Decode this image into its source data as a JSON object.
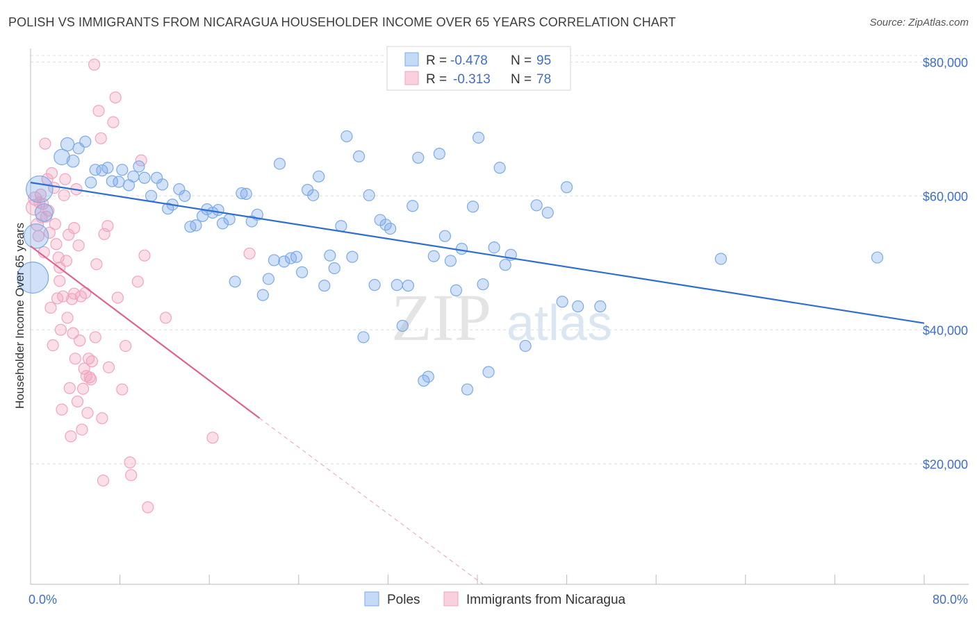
{
  "title": "POLISH VS IMMIGRANTS FROM NICARAGUA HOUSEHOLDER INCOME OVER 65 YEARS CORRELATION CHART",
  "source": "Source: ZipAtlas.com",
  "chart_data": {
    "type": "scatter",
    "title": "POLISH VS IMMIGRANTS FROM NICARAGUA HOUSEHOLDER INCOME OVER 65 YEARS CORRELATION CHART",
    "xlabel": "",
    "ylabel": "Householder Income Over 65 years",
    "xlim": [
      0,
      80
    ],
    "ylim": [
      2000,
      82000
    ],
    "x_tick_labels": [
      {
        "value": 0,
        "label": "0.0%"
      },
      {
        "value": 80,
        "label": "80.0%"
      }
    ],
    "y_tick_labels": [
      {
        "value": 20000,
        "label": "$20,000"
      },
      {
        "value": 40000,
        "label": "$40,000"
      },
      {
        "value": 60000,
        "label": "$60,000"
      },
      {
        "value": 80000,
        "label": "$80,000"
      }
    ],
    "watermark": {
      "zip": "ZIP",
      "atlas": "atlas"
    },
    "legend": [
      {
        "r_label": "R =",
        "r_value": "-0.478",
        "n_label": "N =",
        "n_value": "95"
      },
      {
        "r_label": "R =",
        "r_value": "-0.313",
        "n_label": "N =",
        "n_value": "78"
      }
    ],
    "series": [
      {
        "name": "Poles",
        "color": "#7aaae8",
        "line_color": "#2d6fd0",
        "trend": {
          "x0": 0,
          "y0": 62000,
          "x1": 80,
          "y1": 41000
        },
        "points": [
          [
            0.2,
            47800,
            28
          ],
          [
            0.5,
            54000,
            22
          ],
          [
            0.8,
            61000,
            24
          ],
          [
            1.2,
            57500,
            16
          ],
          [
            2.8,
            65800,
            14
          ],
          [
            3.3,
            67700,
            12
          ],
          [
            3.8,
            65200,
            11
          ],
          [
            4.3,
            67100,
            10
          ],
          [
            4.9,
            68100,
            10
          ],
          [
            5.4,
            62000,
            10
          ],
          [
            5.8,
            63900,
            10
          ],
          [
            6.4,
            63800,
            10
          ],
          [
            6.9,
            64200,
            10
          ],
          [
            7.3,
            62200,
            10
          ],
          [
            7.9,
            62100,
            10
          ],
          [
            8.2,
            63900,
            10
          ],
          [
            8.8,
            61600,
            10
          ],
          [
            9.2,
            62900,
            10
          ],
          [
            9.7,
            64400,
            10
          ],
          [
            10.2,
            62700,
            10
          ],
          [
            10.8,
            60000,
            10
          ],
          [
            11.3,
            62700,
            10
          ],
          [
            11.8,
            61700,
            10
          ],
          [
            12.3,
            58100,
            10
          ],
          [
            12.7,
            58700,
            10
          ],
          [
            13.3,
            61000,
            10
          ],
          [
            13.8,
            60000,
            10
          ],
          [
            14.3,
            55400,
            10
          ],
          [
            14.8,
            55600,
            10
          ],
          [
            15.4,
            57000,
            10
          ],
          [
            15.8,
            58000,
            10
          ],
          [
            16.3,
            57500,
            10
          ],
          [
            16.8,
            57900,
            10
          ],
          [
            17.2,
            55900,
            10
          ],
          [
            17.8,
            56500,
            10
          ],
          [
            18.3,
            47200,
            10
          ],
          [
            18.9,
            60400,
            10
          ],
          [
            19.3,
            60300,
            10
          ],
          [
            19.8,
            56200,
            10
          ],
          [
            20.3,
            57200,
            10
          ],
          [
            20.8,
            45200,
            10
          ],
          [
            21.3,
            47600,
            10
          ],
          [
            21.8,
            50400,
            10
          ],
          [
            22.3,
            64800,
            10
          ],
          [
            22.7,
            50200,
            10
          ],
          [
            23.3,
            50700,
            10
          ],
          [
            23.8,
            50900,
            10
          ],
          [
            24.3,
            48600,
            10
          ],
          [
            24.8,
            60900,
            10
          ],
          [
            25.3,
            60100,
            10
          ],
          [
            25.8,
            62900,
            10
          ],
          [
            26.3,
            46600,
            10
          ],
          [
            26.8,
            51100,
            10
          ],
          [
            27.2,
            49200,
            10
          ],
          [
            27.8,
            55500,
            10
          ],
          [
            28.3,
            68900,
            10
          ],
          [
            28.8,
            50900,
            10
          ],
          [
            29.4,
            65900,
            10
          ],
          [
            29.8,
            38900,
            10
          ],
          [
            30.3,
            60100,
            10
          ],
          [
            30.8,
            46700,
            10
          ],
          [
            31.3,
            56400,
            10
          ],
          [
            31.8,
            55700,
            10
          ],
          [
            32.2,
            55100,
            10
          ],
          [
            32.8,
            46700,
            10
          ],
          [
            33.3,
            40600,
            10
          ],
          [
            33.8,
            46600,
            10
          ],
          [
            34.2,
            58500,
            10
          ],
          [
            34.7,
            65700,
            10
          ],
          [
            35.2,
            32400,
            10
          ],
          [
            35.6,
            33000,
            10
          ],
          [
            36.1,
            51000,
            10
          ],
          [
            36.6,
            66300,
            10
          ],
          [
            37.1,
            54000,
            10
          ],
          [
            37.6,
            50300,
            10
          ],
          [
            38.1,
            45900,
            10
          ],
          [
            38.6,
            52100,
            10
          ],
          [
            39.1,
            31100,
            10
          ],
          [
            39.6,
            58400,
            10
          ],
          [
            40.1,
            68700,
            10
          ],
          [
            40.5,
            46800,
            10
          ],
          [
            41.0,
            33700,
            10
          ],
          [
            41.5,
            52300,
            10
          ],
          [
            42.0,
            64200,
            10
          ],
          [
            42.5,
            49700,
            10
          ],
          [
            43.0,
            51200,
            10
          ],
          [
            44.3,
            37600,
            10
          ],
          [
            45.3,
            58600,
            10
          ],
          [
            46.3,
            57500,
            10
          ],
          [
            47.6,
            44200,
            10
          ],
          [
            48.0,
            61300,
            10
          ],
          [
            49.0,
            43500,
            10
          ],
          [
            51.0,
            43500,
            10
          ],
          [
            61.8,
            50600,
            10
          ],
          [
            75.8,
            50800,
            10
          ]
        ]
      },
      {
        "name": "Immigrants from Nicaragua",
        "color": "#f2a3be",
        "line_color": "#e0628e",
        "trend": {
          "x0": 0,
          "y0": 52500,
          "x1": 20.5,
          "y1": 26800
        },
        "trend_ext": {
          "x0": 20.5,
          "y0": 26800,
          "x1": 40.5,
          "y1": 2000
        },
        "points": [
          [
            0.3,
            58300,
            14
          ],
          [
            0.4,
            59600,
            12
          ],
          [
            0.6,
            55700,
            11
          ],
          [
            0.7,
            54000,
            10
          ],
          [
            0.8,
            59000,
            10
          ],
          [
            1.0,
            56800,
            10
          ],
          [
            1.1,
            58800,
            10
          ],
          [
            1.3,
            67800,
            10
          ],
          [
            1.5,
            62500,
            10
          ],
          [
            1.6,
            57800,
            10
          ],
          [
            1.7,
            54500,
            10
          ],
          [
            1.8,
            43300,
            10
          ],
          [
            1.9,
            63400,
            10
          ],
          [
            2.0,
            37700,
            10
          ],
          [
            2.2,
            55800,
            10
          ],
          [
            2.3,
            52800,
            10
          ],
          [
            2.4,
            44700,
            10
          ],
          [
            2.5,
            50800,
            10
          ],
          [
            2.6,
            47300,
            10
          ],
          [
            2.7,
            40000,
            10
          ],
          [
            2.8,
            28100,
            10
          ],
          [
            2.9,
            45000,
            10
          ],
          [
            3.0,
            60100,
            10
          ],
          [
            3.1,
            62500,
            10
          ],
          [
            3.2,
            50300,
            10
          ],
          [
            3.3,
            41800,
            10
          ],
          [
            3.4,
            54200,
            10
          ],
          [
            3.5,
            31300,
            10
          ],
          [
            3.6,
            24100,
            10
          ],
          [
            3.7,
            44600,
            10
          ],
          [
            3.8,
            39500,
            10
          ],
          [
            3.9,
            45400,
            10
          ],
          [
            4.0,
            35700,
            10
          ],
          [
            4.1,
            61000,
            10
          ],
          [
            4.2,
            29300,
            10
          ],
          [
            4.3,
            52600,
            10
          ],
          [
            4.4,
            38400,
            10
          ],
          [
            4.5,
            45000,
            10
          ],
          [
            4.6,
            25100,
            10
          ],
          [
            4.7,
            31200,
            10
          ],
          [
            4.8,
            34200,
            10
          ],
          [
            4.9,
            45500,
            10
          ],
          [
            5.0,
            33100,
            10
          ],
          [
            5.1,
            27600,
            10
          ],
          [
            5.2,
            35700,
            10
          ],
          [
            5.3,
            32900,
            10
          ],
          [
            5.4,
            32600,
            10
          ],
          [
            5.5,
            35300,
            10
          ],
          [
            5.7,
            79600,
            10
          ],
          [
            5.9,
            49800,
            10
          ],
          [
            6.1,
            72700,
            10
          ],
          [
            6.3,
            68600,
            10
          ],
          [
            6.4,
            26800,
            10
          ],
          [
            6.5,
            17500,
            10
          ],
          [
            6.6,
            54300,
            10
          ],
          [
            6.9,
            55500,
            10
          ],
          [
            7.0,
            34400,
            10
          ],
          [
            7.4,
            71000,
            10
          ],
          [
            7.6,
            74700,
            10
          ],
          [
            8.2,
            31100,
            10
          ],
          [
            8.5,
            37600,
            10
          ],
          [
            8.9,
            20200,
            10
          ],
          [
            9.0,
            18300,
            10
          ],
          [
            9.6,
            47200,
            10
          ],
          [
            9.9,
            65300,
            10
          ],
          [
            10.2,
            51100,
            10
          ],
          [
            10.5,
            13500,
            10
          ],
          [
            12.1,
            41800,
            10
          ],
          [
            16.3,
            23900,
            10
          ],
          [
            19.6,
            51400,
            10
          ],
          [
            1.4,
            56900,
            10
          ],
          [
            2.1,
            61200,
            10
          ],
          [
            3.9,
            55200,
            10
          ],
          [
            0.9,
            60200,
            10
          ],
          [
            1.2,
            51600,
            10
          ],
          [
            5.8,
            38900,
            10
          ],
          [
            7.8,
            44800,
            10
          ],
          [
            2.6,
            49300,
            10
          ]
        ]
      }
    ]
  },
  "bottom_legend": [
    {
      "label": "Poles"
    },
    {
      "label": "Immigrants from Nicaragua"
    }
  ]
}
